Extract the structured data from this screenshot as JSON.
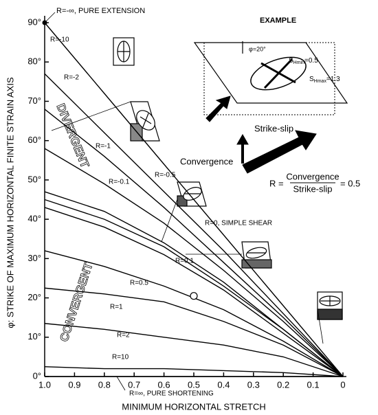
{
  "chart_data": {
    "type": "line",
    "ylabel": "φ: STRIKE OF MAXIMUM HORIZONTAL FINITE STRAIN AXIS",
    "xlabel": "MINIMUM HORIZONTAL STRETCH",
    "xlim": [
      1,
      0
    ],
    "ylim": [
      0,
      90
    ],
    "xticks": [
      {
        "value": 1,
        "label": "1.0"
      },
      0.9,
      0.8,
      0.7,
      0.6,
      0.5,
      0.4,
      0.3,
      0.2,
      0.1,
      0
    ],
    "yticks": [
      {
        "value": 0,
        "label": "0°"
      },
      {
        "value": 10,
        "label": "10°"
      },
      {
        "value": 20,
        "label": "20°"
      },
      {
        "value": 30,
        "label": "30°"
      },
      {
        "value": 40,
        "label": "40°"
      },
      {
        "value": 50,
        "label": "50°"
      },
      {
        "value": 60,
        "label": "60°"
      },
      {
        "value": 70,
        "label": "70°"
      },
      {
        "value": 80,
        "label": "80°"
      },
      {
        "value": 90,
        "label": "90°"
      }
    ],
    "x": [
      1,
      0.8,
      0.6,
      0.4,
      0.2,
      0
    ],
    "series": [
      {
        "name": "R=-10",
        "color": "#000000",
        "values": [
          90,
          72,
          54,
          36,
          18,
          0
        ]
      },
      {
        "name": "R=-2",
        "color": "#000000",
        "values": [
          77,
          62,
          47,
          32,
          16,
          0
        ]
      },
      {
        "name": "R=-1",
        "color": "#000000",
        "values": [
          68,
          56,
          43,
          29,
          15,
          0
        ]
      },
      {
        "name": "R=-0.5",
        "color": "#000000",
        "values": [
          58,
          49,
          39,
          27,
          14,
          0
        ]
      },
      {
        "name": "R=-0.1",
        "color": "#000000",
        "values": [
          47,
          42,
          34,
          24,
          12,
          0
        ]
      },
      {
        "name": "R=0, SIMPLE SHEAR",
        "color": "#000000",
        "values": [
          45,
          40,
          33,
          23,
          12,
          0
        ]
      },
      {
        "name": "R=0.1",
        "color": "#000000",
        "values": [
          43,
          38,
          31,
          22,
          11,
          0
        ]
      },
      {
        "name": "R=0.5",
        "color": "#000000",
        "values": [
          32,
          28,
          23,
          17,
          9,
          0
        ]
      },
      {
        "name": "R=1",
        "color": "#000000",
        "values": [
          22.5,
          21,
          19,
          14,
          8,
          0
        ]
      },
      {
        "name": "R=2",
        "color": "#000000",
        "values": [
          13.5,
          12,
          10,
          8,
          5,
          0
        ]
      },
      {
        "name": "R=10",
        "color": "#000000",
        "values": [
          2.5,
          2,
          2,
          1.5,
          1,
          0
        ]
      },
      {
        "name": "R=∞, PURE SHORTENING",
        "color": "#000000",
        "values": [
          0,
          0,
          0,
          0,
          0,
          0
        ]
      }
    ],
    "extension_point": {
      "label": "R=-∞, PURE EXTENSION",
      "x": 1,
      "y": 90
    },
    "example_point": {
      "x": 0.5,
      "y": 20.5
    },
    "regions": [
      "DIVERGENT",
      "CONVERGENT"
    ],
    "example": {
      "title": "EXAMPLE",
      "angle": "φ=20°",
      "s_hmin": {
        "symbol": "S",
        "sub": "Hmin",
        "text": "=0.5"
      },
      "s_hmax": {
        "symbol": "S",
        "sub": "Hmax",
        "text": "=1.3"
      },
      "strike_slip": "Strike-slip",
      "convergence": "Convergence",
      "r_prefix": "R =",
      "numerator": "Convergence",
      "denominator": "Strike-slip",
      "r_value": "= 0.5"
    }
  }
}
